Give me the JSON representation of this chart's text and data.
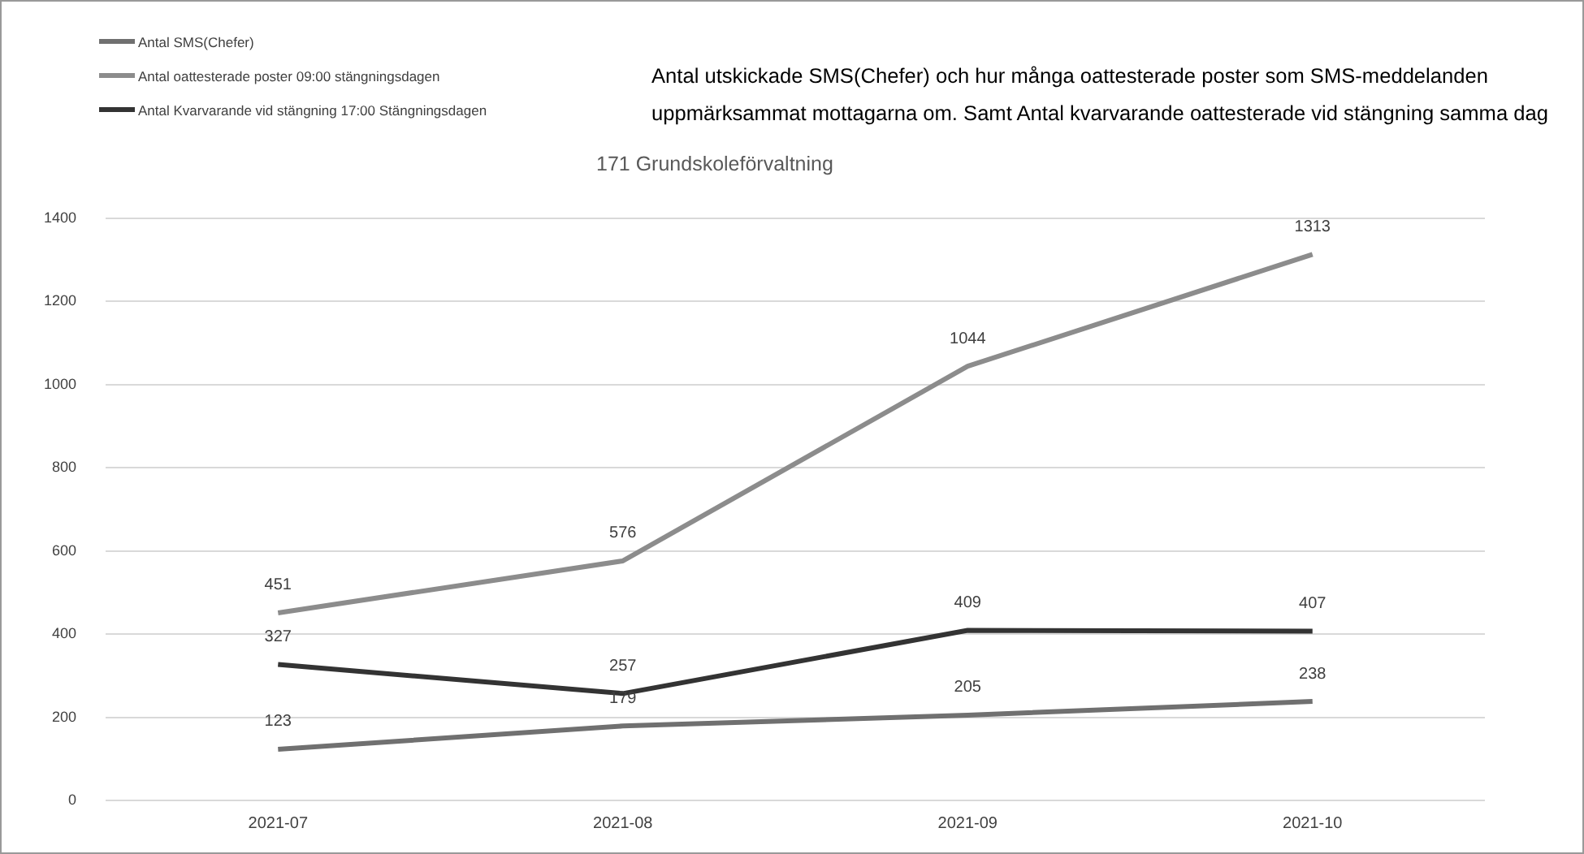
{
  "chart_data": {
    "type": "line",
    "title": "Antal utskickade SMS(Chefer) och hur många oattesterade poster som SMS-meddelanden uppmärksammat mottagarna om. Samt Antal kvarvarande oattesterade vid stängning samma dag",
    "subtitle": "171 Grundskoleförvaltning",
    "categories": [
      "2021-07",
      "2021-08",
      "2021-09",
      "2021-10"
    ],
    "series": [
      {
        "name": "Antal SMS(Chefer)",
        "color": "#707070",
        "values": [
          123,
          179,
          205,
          238
        ]
      },
      {
        "name": "Antal oattesterade poster 09:00 stängningsdagen",
        "color": "#8c8c8c",
        "values": [
          451,
          576,
          1044,
          1313
        ]
      },
      {
        "name": "Antal Kvarvarande vid stängning 17:00 Stängningsdagen",
        "color": "#333333",
        "values": [
          327,
          257,
          409,
          407
        ]
      }
    ],
    "ylim": [
      0,
      1400
    ],
    "yticks": [
      0,
      200,
      400,
      600,
      800,
      1000,
      1200,
      1400
    ],
    "grid": "y",
    "legend": "top left",
    "data_labels": true,
    "marker": "none",
    "line_style": "solid"
  }
}
